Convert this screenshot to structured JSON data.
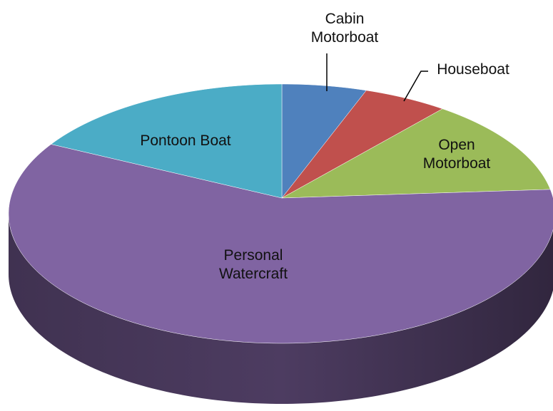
{
  "chart_data": {
    "type": "pie",
    "categories": [
      "Cabin Motorboat",
      "Houseboat",
      "Open Motorboat",
      "Personal Watercraft",
      "Pontoon Boat"
    ],
    "values": [
      5,
      5,
      12,
      62,
      16
    ],
    "colors": [
      "#4f81bd",
      "#c0504d",
      "#9bbb59",
      "#8064a2",
      "#4bacc6"
    ]
  }
}
